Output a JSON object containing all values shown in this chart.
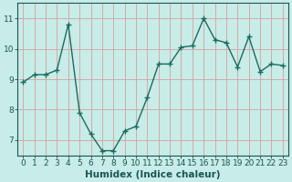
{
  "x": [
    0,
    1,
    2,
    3,
    4,
    5,
    6,
    7,
    8,
    9,
    10,
    11,
    12,
    13,
    14,
    15,
    16,
    17,
    18,
    19,
    20,
    21,
    22,
    23
  ],
  "y": [
    8.9,
    9.15,
    9.15,
    9.3,
    10.8,
    7.9,
    7.2,
    6.65,
    6.65,
    7.3,
    7.45,
    8.4,
    9.5,
    9.5,
    10.05,
    10.1,
    11.0,
    10.3,
    10.2,
    9.4,
    10.4,
    9.25,
    9.5,
    9.45
  ],
  "line_color": "#1a6b5e",
  "marker": "+",
  "markersize": 4,
  "linewidth": 1.0,
  "bg_color": "#c8ece8",
  "grid_color": "#d4a0a0",
  "xlabel": "Humidex (Indice chaleur)",
  "ylim": [
    6.5,
    11.5
  ],
  "yticks": [
    7,
    8,
    9,
    10,
    11
  ],
  "xticks": [
    0,
    1,
    2,
    3,
    4,
    5,
    6,
    7,
    8,
    9,
    10,
    11,
    12,
    13,
    14,
    15,
    16,
    17,
    18,
    19,
    20,
    21,
    22,
    23
  ],
  "tick_color": "#1a5555",
  "spine_color": "#1a5555",
  "xlabel_fontsize": 7.5,
  "tick_fontsize": 6.5
}
